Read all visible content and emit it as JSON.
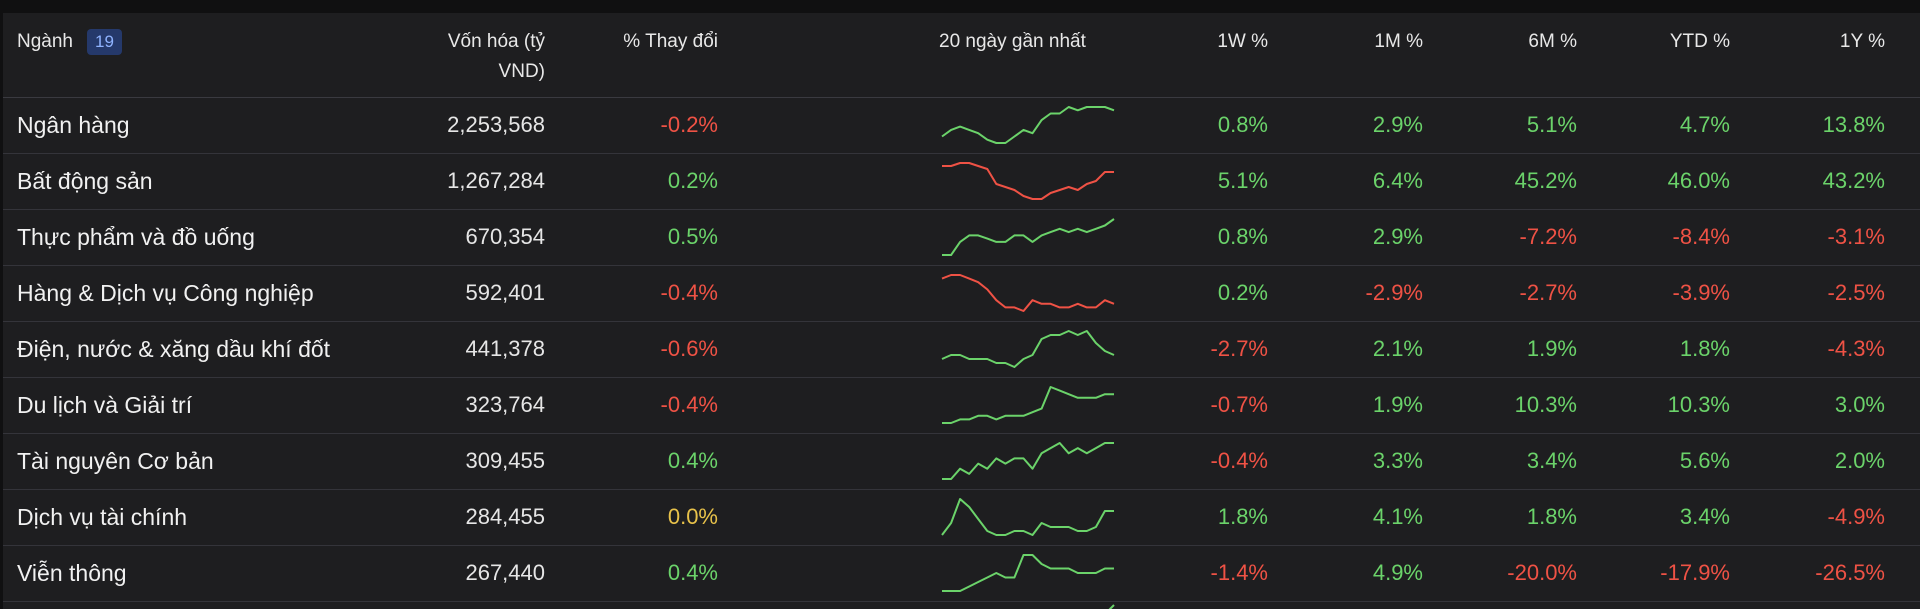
{
  "header": {
    "sector_label": "Ngành",
    "sector_count": "19",
    "cap_label_line1": "Vốn hóa (tỷ",
    "cap_label_line2": "VND)",
    "change_label": "% Thay đổi",
    "spark_label": "20 ngày gần nhất",
    "w1_label": "1W %",
    "m1_label": "1M %",
    "m6_label": "6M %",
    "ytd_label": "YTD %",
    "y1_label": "1Y %"
  },
  "colors": {
    "positive": "#6bd36a",
    "negative": "#ef5245",
    "neutral": "#e8c24a"
  },
  "rows": [
    {
      "name": "Ngân hàng",
      "cap": "2,253,568",
      "change": "-0.2%",
      "w1": "0.8%",
      "m1": "2.9%",
      "m6": "5.1%",
      "ytd": "4.7%",
      "y1": "13.8%",
      "spark_trend": "up",
      "spark": [
        10,
        12,
        13,
        12,
        11,
        9,
        8,
        8,
        10,
        12,
        11,
        15,
        17,
        17,
        19,
        18,
        19,
        19,
        19,
        18
      ]
    },
    {
      "name": "Bất động sản",
      "cap": "1,267,284",
      "change": "0.2%",
      "w1": "5.1%",
      "m1": "6.4%",
      "m6": "45.2%",
      "ytd": "46.0%",
      "y1": "43.2%",
      "spark_trend": "down",
      "spark": [
        17,
        17,
        18,
        18,
        17,
        16,
        11,
        10,
        9,
        7,
        6,
        6,
        8,
        9,
        10,
        9,
        11,
        12,
        15,
        15
      ]
    },
    {
      "name": "Thực phẩm và đồ uống",
      "cap": "670,354",
      "change": "0.5%",
      "w1": "0.8%",
      "m1": "2.9%",
      "m6": "-7.2%",
      "ytd": "-8.4%",
      "y1": "-3.1%",
      "spark_trend": "up",
      "spark": [
        6,
        6,
        10,
        12,
        12,
        11,
        10,
        10,
        12,
        12,
        10,
        12,
        13,
        14,
        13,
        14,
        13,
        14,
        15,
        17
      ]
    },
    {
      "name": "Hàng & Dịch vụ Công nghiệp",
      "cap": "592,401",
      "change": "-0.4%",
      "w1": "0.2%",
      "m1": "-2.9%",
      "m6": "-2.7%",
      "ytd": "-3.9%",
      "y1": "-2.5%",
      "spark_trend": "down",
      "spark": [
        16,
        17,
        17,
        16,
        15,
        13,
        10,
        8,
        8,
        7,
        10,
        9,
        9,
        8,
        8,
        9,
        8,
        8,
        10,
        9
      ]
    },
    {
      "name": "Điện, nước & xăng dầu khí đốt",
      "cap": "441,378",
      "change": "-0.6%",
      "w1": "-2.7%",
      "m1": "2.1%",
      "m6": "1.9%",
      "ytd": "1.8%",
      "y1": "-4.3%",
      "spark_trend": "up",
      "spark": [
        8,
        9,
        9,
        8,
        8,
        8,
        7,
        7,
        6,
        8,
        9,
        13,
        14,
        14,
        15,
        14,
        15,
        12,
        10,
        9
      ]
    },
    {
      "name": "Du lịch và Giải trí",
      "cap": "323,764",
      "change": "-0.4%",
      "w1": "-0.7%",
      "m1": "1.9%",
      "m6": "10.3%",
      "ytd": "10.3%",
      "y1": "3.0%",
      "spark_trend": "up",
      "spark": [
        6,
        6,
        7,
        7,
        8,
        8,
        7,
        8,
        8,
        8,
        9,
        10,
        16,
        15,
        14,
        13,
        13,
        13,
        14,
        14
      ]
    },
    {
      "name": "Tài nguyên Cơ bản",
      "cap": "309,455",
      "change": "0.4%",
      "w1": "-0.4%",
      "m1": "3.3%",
      "m6": "3.4%",
      "ytd": "5.6%",
      "y1": "2.0%",
      "spark_trend": "up",
      "spark": [
        6,
        6,
        8,
        7,
        9,
        8,
        10,
        9,
        10,
        10,
        8,
        11,
        12,
        13,
        11,
        12,
        11,
        12,
        13,
        13
      ]
    },
    {
      "name": "Dịch vụ tài chính",
      "cap": "284,455",
      "change": "0.0%",
      "w1": "1.8%",
      "m1": "4.1%",
      "m6": "1.8%",
      "ytd": "3.4%",
      "y1": "-4.9%",
      "spark_trend": "up",
      "spark": [
        8,
        11,
        17,
        15,
        12,
        9,
        8,
        8,
        9,
        9,
        8,
        11,
        10,
        10,
        10,
        9,
        9,
        10,
        14,
        14
      ]
    },
    {
      "name": "Viễn thông",
      "cap": "267,440",
      "change": "0.4%",
      "w1": "-1.4%",
      "m1": "4.9%",
      "m6": "-20.0%",
      "ytd": "-17.9%",
      "y1": "-26.5%",
      "spark_trend": "up",
      "spark": [
        6,
        6,
        6,
        7,
        8,
        9,
        10,
        9,
        9,
        14,
        14,
        12,
        11,
        11,
        11,
        10,
        10,
        10,
        11,
        11
      ]
    }
  ]
}
